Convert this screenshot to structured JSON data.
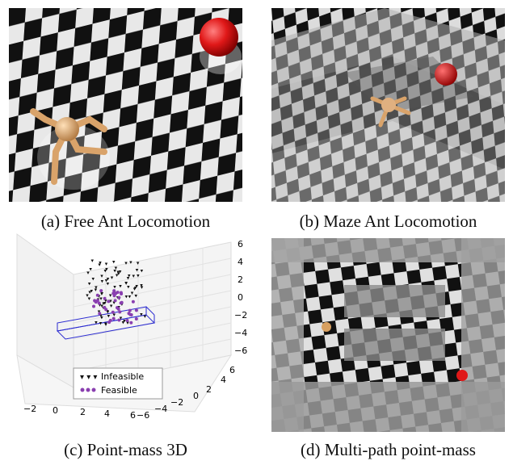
{
  "captions": {
    "a": "(a) Free Ant Locomotion",
    "b": "(b) Maze Ant Locomotion",
    "c": "(c) Point-mass 3D",
    "d": "(d) Multi-path point-mass"
  },
  "plot3d": {
    "z_ticks": [
      "6",
      "4",
      "2",
      "0",
      "−2",
      "−4",
      "−6"
    ],
    "x_ticks": [
      "−2",
      "0",
      "2",
      "4",
      "6"
    ],
    "y_ticks": [
      "6",
      "4",
      "2",
      "0",
      "−2",
      "−4",
      "−6"
    ],
    "legend": {
      "infeasible": "Infeasible",
      "feasible": "Feasible"
    },
    "colors": {
      "infeasible": "#111111",
      "feasible": "#8a3fb0",
      "box": "#2a2ad0"
    }
  }
}
